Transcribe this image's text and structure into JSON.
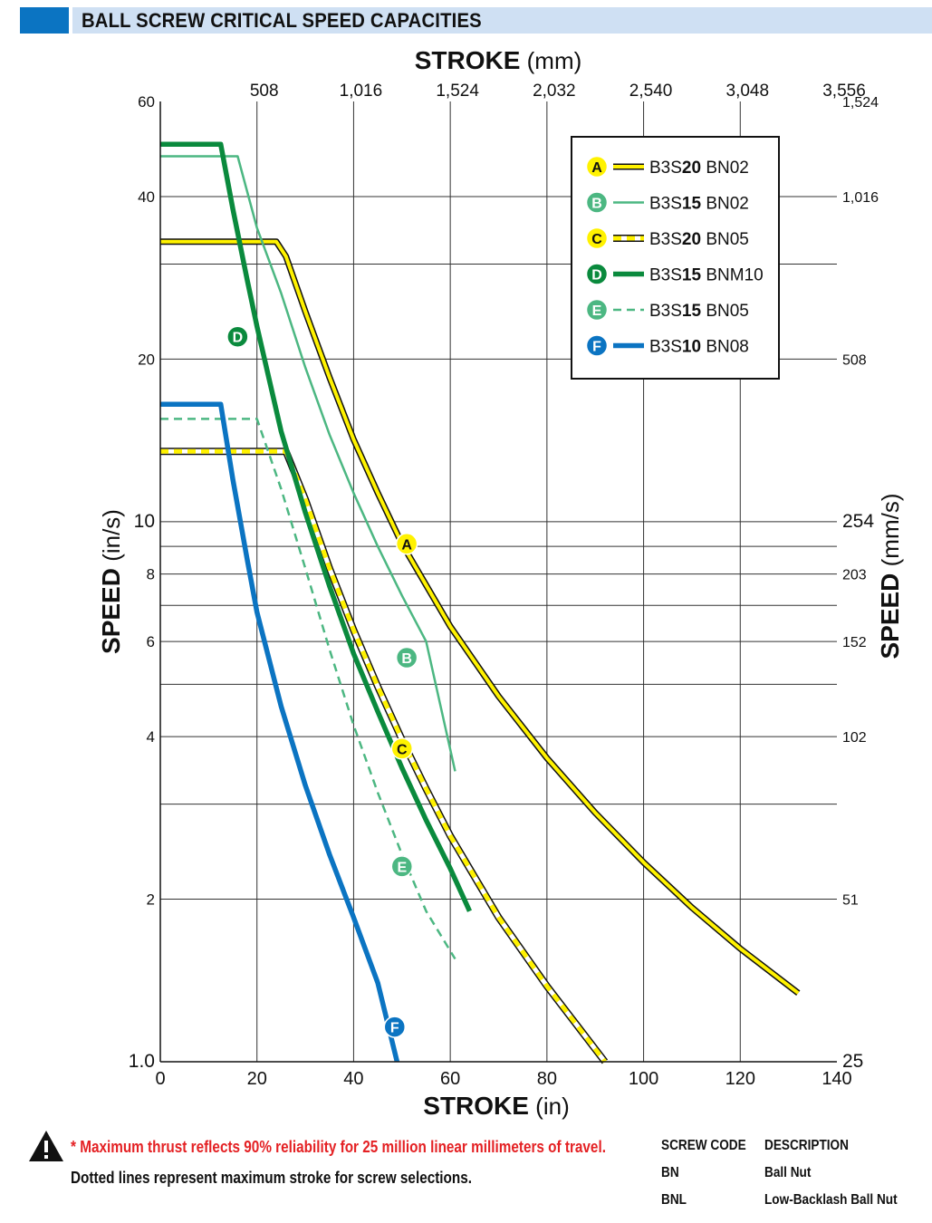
{
  "header": {
    "title": "BALL SCREW CRITICAL SPEED CAPACITIES"
  },
  "chart_data": {
    "type": "line",
    "x_axis_bottom": {
      "label": "STROKE",
      "unit": "(in)",
      "range": [
        0,
        140
      ],
      "ticks": [
        0,
        20,
        40,
        60,
        80,
        100,
        120,
        140
      ],
      "tick_labels": [
        "0",
        "20",
        "40",
        "60",
        "80",
        "100",
        "120",
        "140"
      ]
    },
    "x_axis_top": {
      "label": "STROKE",
      "unit": "(mm)",
      "ticks_in": [
        20,
        40,
        60,
        80,
        100,
        120,
        140
      ],
      "tick_labels": [
        "508",
        "1,016",
        "1,524",
        "2,032",
        "2,540",
        "3,048",
        "3,556"
      ]
    },
    "y_axis_left": {
      "label": "SPEED",
      "unit": "(in/s)",
      "scale": "log",
      "range": [
        1,
        60
      ],
      "ticks": [
        1,
        2,
        4,
        6,
        8,
        10,
        20,
        40,
        60
      ],
      "tick_labels": [
        "1.0",
        "2",
        "4",
        "6",
        "8",
        "10",
        "20",
        "40",
        "60"
      ],
      "minor_gridlines": [
        3,
        5,
        7,
        9,
        30
      ]
    },
    "y_axis_right": {
      "label": "SPEED",
      "unit": "(mm/s)",
      "ticks_in_s": [
        1,
        2,
        4,
        6,
        8,
        10,
        20,
        40,
        60
      ],
      "tick_labels": [
        "25",
        "51",
        "102",
        "152",
        "203",
        "254",
        "508",
        "1,016",
        "1,524"
      ]
    },
    "grid": true,
    "legend_placement": "top-right",
    "series": [
      {
        "letter": "A",
        "name_prefix": "B3S",
        "name_bold": "20",
        "name_suffix": " BN02",
        "color": "#fff200",
        "style": "solid-outlined",
        "badge_fill": "#fff200",
        "badge_text": "#111111",
        "marker": {
          "x": 51,
          "y": 9.1
        },
        "points": [
          [
            0,
            33
          ],
          [
            24,
            33
          ],
          [
            26,
            31
          ],
          [
            30,
            24.5
          ],
          [
            35,
            18.5
          ],
          [
            40,
            14.2
          ],
          [
            45,
            11.3
          ],
          [
            50,
            9.1
          ],
          [
            60,
            6.4
          ],
          [
            70,
            4.75
          ],
          [
            80,
            3.65
          ],
          [
            90,
            2.89
          ],
          [
            100,
            2.34
          ],
          [
            110,
            1.93
          ],
          [
            120,
            1.62
          ],
          [
            132,
            1.34
          ]
        ]
      },
      {
        "letter": "B",
        "name_prefix": "B3S",
        "name_bold": "15",
        "name_suffix": " BN02",
        "color": "#4cb782",
        "style": "thin",
        "badge_fill": "#4cb782",
        "badge_text": "#ffffff",
        "marker": {
          "x": 51,
          "y": 5.6
        },
        "points": [
          [
            0,
            47.5
          ],
          [
            16,
            47.5
          ],
          [
            20,
            35
          ],
          [
            25,
            26.5
          ],
          [
            30,
            19.3
          ],
          [
            35,
            14.5
          ],
          [
            40,
            11.3
          ],
          [
            45,
            9.0
          ],
          [
            50,
            7.3
          ],
          [
            55,
            6.0
          ],
          [
            61,
            3.45
          ]
        ]
      },
      {
        "letter": "C",
        "name_prefix": "B3S",
        "name_bold": "20",
        "name_suffix": " BN05",
        "color": "#fff200",
        "style": "dashed-outlined",
        "badge_fill": "#fff200",
        "badge_text": "#111111",
        "marker": {
          "x": 50,
          "y": 3.8
        },
        "points": [
          [
            0,
            13.5
          ],
          [
            26,
            13.5
          ],
          [
            30,
            11.0
          ],
          [
            35,
            8.2
          ],
          [
            40,
            6.3
          ],
          [
            45,
            4.95
          ],
          [
            50,
            3.95
          ],
          [
            55,
            3.2
          ],
          [
            60,
            2.62
          ],
          [
            70,
            1.85
          ],
          [
            80,
            1.38
          ],
          [
            92,
            1.0
          ]
        ]
      },
      {
        "letter": "D",
        "name_prefix": "B3S",
        "name_bold": "15",
        "name_suffix": " BNM10",
        "color": "#0a8a3d",
        "style": "thick",
        "badge_fill": "#0a8a3d",
        "badge_text": "#ffffff",
        "marker": {
          "x": 16,
          "y": 22
        },
        "points": [
          [
            0,
            50
          ],
          [
            12.5,
            50
          ],
          [
            15,
            38
          ],
          [
            18,
            28
          ],
          [
            20,
            23
          ],
          [
            25,
            14.7
          ],
          [
            30,
            10.4
          ],
          [
            35,
            7.6
          ],
          [
            40,
            5.7
          ],
          [
            45,
            4.45
          ],
          [
            50,
            3.5
          ],
          [
            55,
            2.8
          ],
          [
            60,
            2.28
          ],
          [
            64,
            1.9
          ]
        ]
      },
      {
        "letter": "E",
        "name_prefix": "B3S",
        "name_bold": "15",
        "name_suffix": " BN05",
        "color": "#4cb782",
        "style": "dashed",
        "badge_fill": "#4cb782",
        "badge_text": "#ffffff",
        "marker": {
          "x": 50,
          "y": 2.3
        },
        "points": [
          [
            0,
            15.5
          ],
          [
            20,
            15.5
          ],
          [
            25,
            11.5
          ],
          [
            30,
            8.2
          ],
          [
            35,
            5.8
          ],
          [
            40,
            4.2
          ],
          [
            45,
            3.15
          ],
          [
            50,
            2.42
          ],
          [
            55,
            1.9
          ],
          [
            61,
            1.55
          ]
        ]
      },
      {
        "letter": "F",
        "name_prefix": "B3S",
        "name_bold": "10",
        "name_suffix": " BN08",
        "color": "#0b74c2",
        "style": "thick",
        "badge_fill": "#0b74c2",
        "badge_text": "#ffffff",
        "marker": {
          "x": 48.5,
          "y": 1.16
        },
        "points": [
          [
            0,
            16.5
          ],
          [
            12.5,
            16.5
          ],
          [
            15,
            12
          ],
          [
            18,
            8.5
          ],
          [
            20,
            6.8
          ],
          [
            25,
            4.55
          ],
          [
            30,
            3.25
          ],
          [
            35,
            2.42
          ],
          [
            40,
            1.85
          ],
          [
            45,
            1.4
          ],
          [
            49,
            1.0
          ]
        ]
      }
    ]
  },
  "footnotes": {
    "warning": "* Maximum thrust reflects 90% reliability for 25 million linear millimeters of travel.",
    "dotted": "Dotted lines represent maximum stroke for screw selections."
  },
  "code_table": {
    "headers": [
      "SCREW CODE",
      "DESCRIPTION"
    ],
    "rows": [
      {
        "code": "BN",
        "description": "Ball Nut"
      },
      {
        "code": "BNL",
        "description": "Low-Backlash Ball Nut"
      }
    ]
  },
  "colors": {
    "accent_blue": "#0b74c2",
    "header_band": "#cfe0f3",
    "warning_red": "#e42124"
  }
}
